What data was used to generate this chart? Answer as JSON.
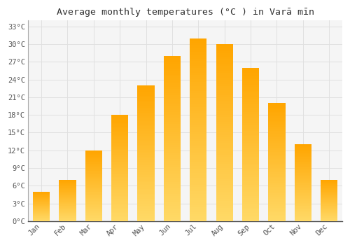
{
  "months": [
    "Jan",
    "Feb",
    "Mar",
    "Apr",
    "May",
    "Jun",
    "Jul",
    "Aug",
    "Sep",
    "Oct",
    "Nov",
    "Dec"
  ],
  "temperatures": [
    5,
    7,
    12,
    18,
    23,
    28,
    31,
    30,
    26,
    20,
    13,
    7
  ],
  "title": "Average monthly temperatures (°C ) in Varā mīn",
  "ylim_min": 0,
  "ylim_max": 34,
  "yticks": [
    0,
    3,
    6,
    9,
    12,
    15,
    18,
    21,
    24,
    27,
    30,
    33
  ],
  "ytick_labels": [
    "0°C",
    "3°C",
    "6°C",
    "9°C",
    "12°C",
    "15°C",
    "18°C",
    "21°C",
    "24°C",
    "27°C",
    "30°C",
    "33°C"
  ],
  "background_color": "#ffffff",
  "plot_bg_color": "#f5f5f5",
  "grid_color": "#e0e0e0",
  "bar_color_top": "#FFA500",
  "bar_color_bottom": "#FFD966",
  "title_fontsize": 9.5,
  "tick_fontsize": 7.5,
  "bar_width": 0.65
}
